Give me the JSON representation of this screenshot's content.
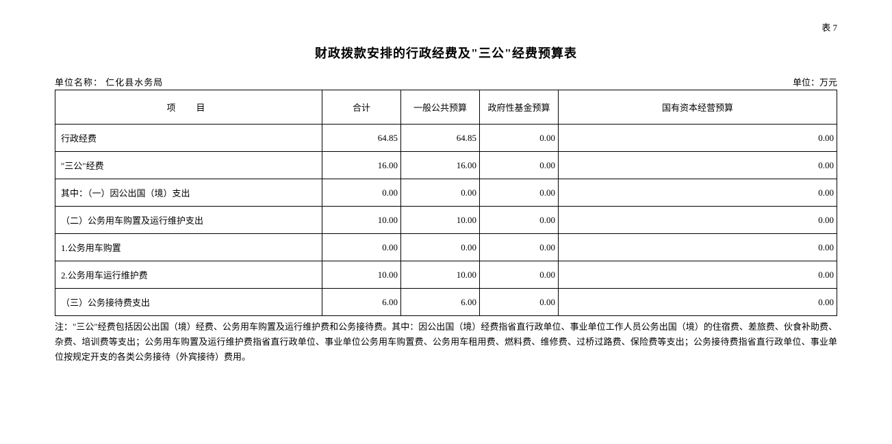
{
  "meta": {
    "table_number": "表 7",
    "title": "财政拨款安排的行政经费及\"三公\"经费预算表",
    "unit_name_label": "单位名称：",
    "unit_name": "仁化县水务局",
    "unit_label": "单位：万元"
  },
  "table": {
    "headers": {
      "item": "项目",
      "total": "合计",
      "general": "一般公共预算",
      "gov_fund": "政府性基金预算",
      "state_capital": "国有资本经营预算"
    },
    "rows": [
      {
        "item": "行政经费",
        "indent": 0,
        "total": "64.85",
        "general": "64.85",
        "gov": "0.00",
        "state": "0.00"
      },
      {
        "item": "\"三公\"经费",
        "indent": 0,
        "total": "16.00",
        "general": "16.00",
        "gov": "0.00",
        "state": "0.00"
      },
      {
        "item": "其中：（一）因公出国（境）支出",
        "indent": 1,
        "total": "0.00",
        "general": "0.00",
        "gov": "0.00",
        "state": "0.00"
      },
      {
        "item": "（二）公务用车购置及运行维护支出",
        "indent": 2,
        "total": "10.00",
        "general": "10.00",
        "gov": "0.00",
        "state": "0.00"
      },
      {
        "item": "1.公务用车购置",
        "indent": 3,
        "total": "0.00",
        "general": "0.00",
        "gov": "0.00",
        "state": "0.00"
      },
      {
        "item": "2.公务用车运行维护费",
        "indent": 3,
        "total": "10.00",
        "general": "10.00",
        "gov": "0.00",
        "state": "0.00"
      },
      {
        "item": "（三）公务接待费支出",
        "indent": 2,
        "total": "6.00",
        "general": "6.00",
        "gov": "0.00",
        "state": "0.00"
      }
    ]
  },
  "note": "注：\"三公\"经费包括因公出国（境）经费、公务用车购置及运行维护费和公务接待费。其中：因公出国（境）经费指省直行政单位、事业单位工作人员公务出国（境）的住宿费、差旅费、伙食补助费、杂费、培训费等支出；公务用车购置及运行维护费指省直行政单位、事业单位公务用车购置费、公务用车租用费、燃料费、维修费、过桥过路费、保险费等支出；公务接待费指省直行政单位、事业单位按规定开支的各类公务接待（外宾接待）费用。"
}
